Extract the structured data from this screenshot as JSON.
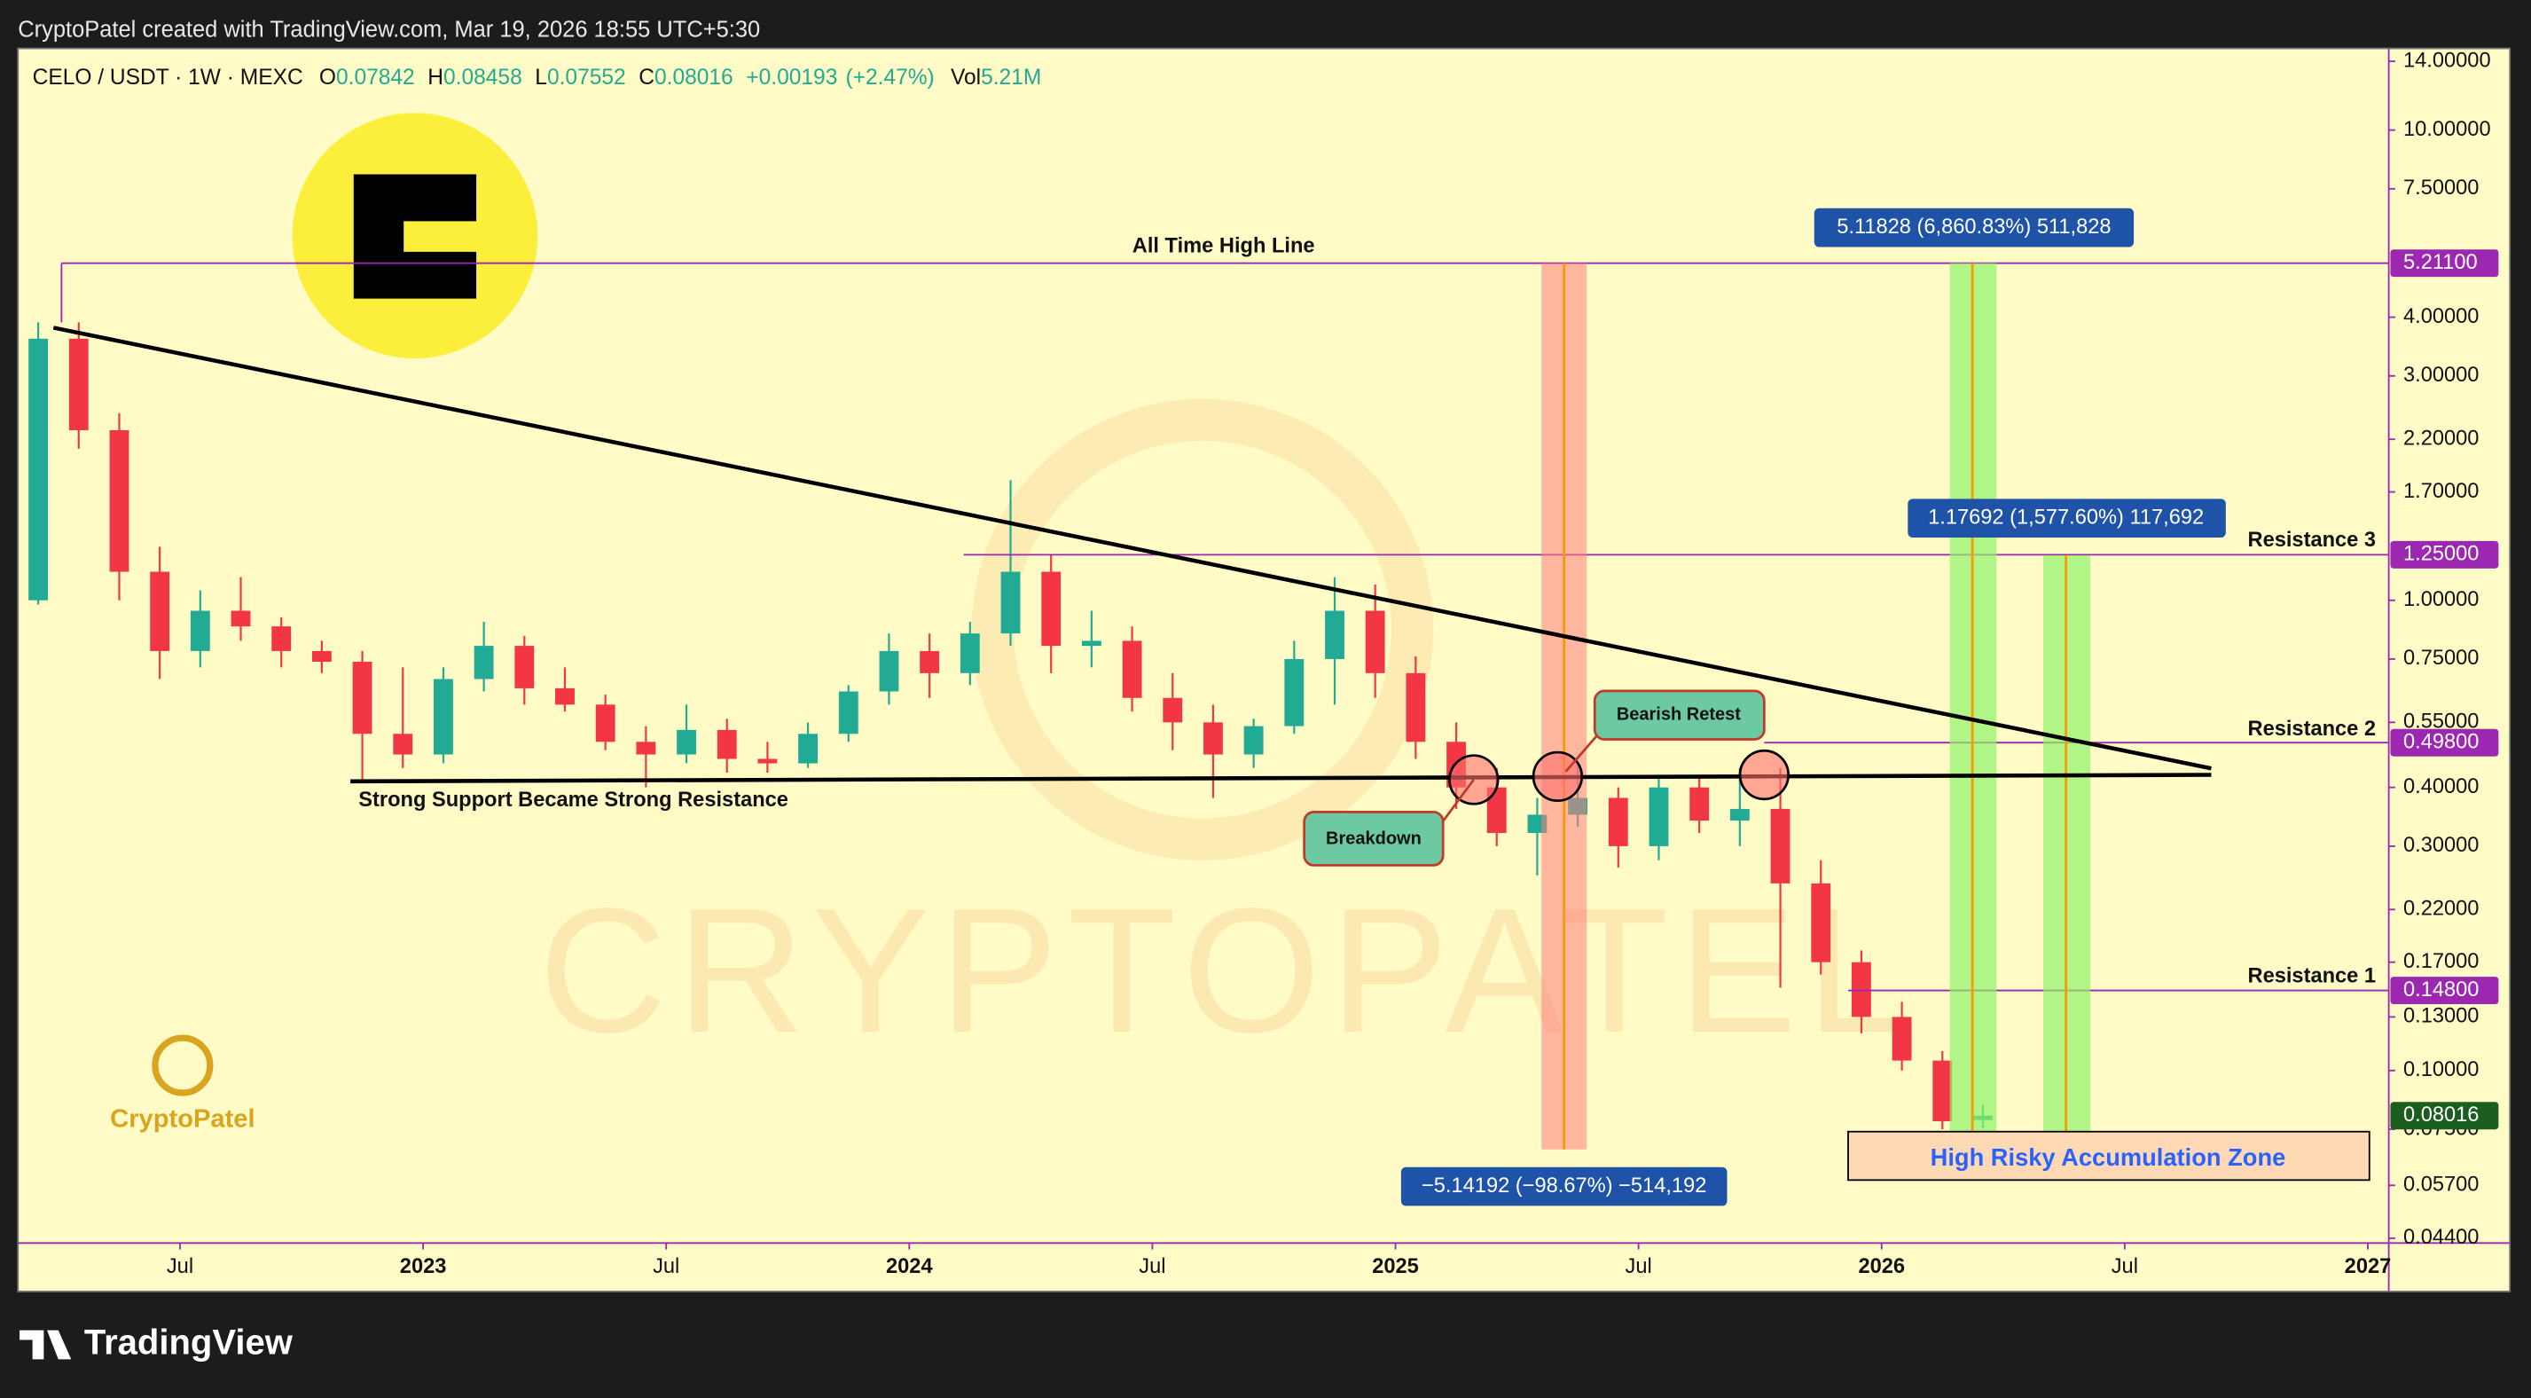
{
  "header": {
    "text": "CryptoPatel created with TradingView.com, Mar 19, 2026 18:55 UTC+5:30"
  },
  "chart_data": {
    "type": "candlestick",
    "legend": {
      "symbol": "CELO / USDT · 1W · MEXC",
      "o": "O",
      "open": 0.07842,
      "h": "H",
      "high": 0.08458,
      "l": "L",
      "low": 0.07552,
      "c": "C",
      "close": 0.08016,
      "change": "+0.00193",
      "change_pct": "(+2.47%)",
      "vol": "Vol",
      "volume": "5.21M"
    },
    "x": [
      "2022-03",
      "2022-04",
      "2022-05",
      "2022-06",
      "2022-07",
      "2022-08",
      "2022-09",
      "2022-10",
      "2022-11",
      "2022-12",
      "2023-01",
      "2023-02",
      "2023-03",
      "2023-04",
      "2023-05",
      "2023-06",
      "2023-07",
      "2023-08",
      "2023-09",
      "2023-10",
      "2023-11",
      "2023-12",
      "2024-01",
      "2024-02",
      "2024-03",
      "2024-04",
      "2024-05",
      "2024-06",
      "2024-07",
      "2024-08",
      "2024-09",
      "2024-10",
      "2024-11",
      "2024-12",
      "2025-01",
      "2025-02",
      "2025-03",
      "2025-04",
      "2025-05",
      "2025-06",
      "2025-07",
      "2025-08",
      "2025-09",
      "2025-10",
      "2025-11",
      "2025-12",
      "2026-01",
      "2026-02",
      "2026-03"
    ],
    "open": [
      1.0,
      3.6,
      2.3,
      1.15,
      0.78,
      0.95,
      0.88,
      0.78,
      0.74,
      0.52,
      0.47,
      0.68,
      0.8,
      0.65,
      0.6,
      0.5,
      0.47,
      0.53,
      0.46,
      0.45,
      0.52,
      0.64,
      0.78,
      0.7,
      0.85,
      1.15,
      0.8,
      0.82,
      0.62,
      0.55,
      0.47,
      0.54,
      0.75,
      0.95,
      0.7,
      0.5,
      0.4,
      0.32,
      0.35,
      0.38,
      0.3,
      0.4,
      0.34,
      0.36,
      0.25,
      0.17,
      0.13,
      0.105,
      0.07842
    ],
    "high": [
      3.9,
      3.9,
      2.5,
      1.3,
      1.05,
      1.12,
      0.92,
      0.82,
      0.78,
      0.72,
      0.72,
      0.9,
      0.84,
      0.72,
      0.63,
      0.54,
      0.6,
      0.56,
      0.5,
      0.55,
      0.66,
      0.85,
      0.85,
      0.9,
      1.8,
      1.25,
      0.95,
      0.88,
      0.7,
      0.6,
      0.56,
      0.82,
      1.12,
      1.08,
      0.76,
      0.55,
      0.44,
      0.38,
      0.45,
      0.4,
      0.42,
      0.42,
      0.44,
      0.44,
      0.28,
      0.18,
      0.14,
      0.11,
      0.08458
    ],
    "low": [
      0.98,
      2.1,
      1.0,
      0.68,
      0.72,
      0.82,
      0.72,
      0.7,
      0.41,
      0.44,
      0.45,
      0.64,
      0.6,
      0.58,
      0.48,
      0.4,
      0.45,
      0.43,
      0.43,
      0.44,
      0.5,
      0.6,
      0.62,
      0.66,
      0.8,
      0.7,
      0.72,
      0.58,
      0.48,
      0.38,
      0.44,
      0.52,
      0.6,
      0.62,
      0.46,
      0.36,
      0.3,
      0.26,
      0.33,
      0.27,
      0.28,
      0.32,
      0.3,
      0.15,
      0.16,
      0.12,
      0.1,
      0.075,
      0.07552
    ],
    "close": [
      3.6,
      2.3,
      1.15,
      0.78,
      0.95,
      0.88,
      0.78,
      0.74,
      0.52,
      0.47,
      0.68,
      0.8,
      0.65,
      0.6,
      0.5,
      0.47,
      0.53,
      0.46,
      0.45,
      0.52,
      0.64,
      0.78,
      0.7,
      0.85,
      1.15,
      0.8,
      0.82,
      0.62,
      0.55,
      0.47,
      0.54,
      0.75,
      0.95,
      0.7,
      0.5,
      0.4,
      0.32,
      0.35,
      0.38,
      0.3,
      0.4,
      0.34,
      0.36,
      0.25,
      0.17,
      0.13,
      0.105,
      0.078,
      0.08016
    ],
    "up_color": "#22ab94",
    "down_color": "#f23645",
    "log_scale": true,
    "ylim": [
      0.044,
      14
    ],
    "yticks": [
      {
        "value": 14,
        "label": "14.00000"
      },
      {
        "value": 10,
        "label": "10.00000"
      },
      {
        "value": 7.5,
        "label": "7.50000"
      },
      {
        "value": 4,
        "label": "4.00000"
      },
      {
        "value": 3,
        "label": "3.00000"
      },
      {
        "value": 2.2,
        "label": "2.20000"
      },
      {
        "value": 1.7,
        "label": "1.70000"
      },
      {
        "value": 1,
        "label": "1.00000"
      },
      {
        "value": 0.75,
        "label": "0.75000"
      },
      {
        "value": 0.55,
        "label": "0.55000"
      },
      {
        "value": 0.4,
        "label": "0.40000"
      },
      {
        "value": 0.3,
        "label": "0.30000"
      },
      {
        "value": 0.22,
        "label": "0.22000"
      },
      {
        "value": 0.17,
        "label": "0.17000"
      },
      {
        "value": 0.13,
        "label": "0.13000"
      },
      {
        "value": 0.1,
        "label": "0.10000"
      },
      {
        "value": 0.075,
        "label": "0.07500"
      },
      {
        "value": 0.057,
        "label": "0.05700"
      },
      {
        "value": 0.044,
        "label": "0.04400"
      }
    ],
    "xlim": [
      "2022-03",
      "2027-01"
    ],
    "xticks": [
      {
        "value": "2022-07",
        "label": "Jul"
      },
      {
        "value": "2023-01",
        "label": "2023"
      },
      {
        "value": "2023-07",
        "label": "Jul"
      },
      {
        "value": "2024-01",
        "label": "2024"
      },
      {
        "value": "2024-07",
        "label": "Jul"
      },
      {
        "value": "2025-01",
        "label": "2025"
      },
      {
        "value": "2025-07",
        "label": "Jul"
      },
      {
        "value": "2026-01",
        "label": "2026"
      },
      {
        "value": "2026-07",
        "label": "Jul"
      },
      {
        "value": "2027-01",
        "label": "2027"
      }
    ],
    "price_labels": [
      {
        "value": 5.211,
        "label": "5.21100",
        "color": "#9c27b0"
      },
      {
        "value": 1.25,
        "label": "1.25000",
        "color": "#9c27b0"
      },
      {
        "value": 0.498,
        "label": "0.49800",
        "color": "#9c27b0"
      },
      {
        "value": 0.148,
        "label": "0.14800",
        "color": "#9c27b0"
      },
      {
        "value": 0.08016,
        "label": "0.08016",
        "color": "#1b5e20"
      }
    ]
  },
  "annotations": {
    "ath_line": "All Time High Line",
    "support": "Strong Support Became Strong Resistance",
    "breakdown": "Breakdown",
    "bearish_retest": "Bearish Retest",
    "resistance_3": "Resistance 3",
    "resistance_2": "Resistance 2",
    "resistance_1": "Resistance 1",
    "zone": "High Risky Accumulation Zone",
    "measure_up_1": "5.11828 (6,860.83%) 511,828",
    "measure_up_2": "1.17692 (1,577.60%) 117,692",
    "measure_down": "−5.14192 (−98.67%) −514,192"
  },
  "watermark": "CRYPTOPATEL",
  "logo_text": "CryptoPatel",
  "footer": "TradingView"
}
